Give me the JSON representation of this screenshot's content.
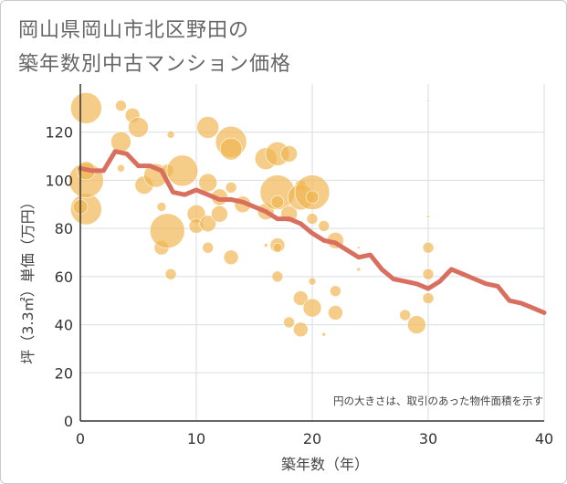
{
  "title_line1": "岡山県岡山市北区野田の",
  "title_line2": "築年数別中古マンション価格",
  "chart_data": {
    "type": "scatter",
    "xlabel": "築年数（年）",
    "ylabel": "坪（3.3㎡）単価（万円）",
    "xlim": [
      0,
      40
    ],
    "ylim": [
      0,
      140
    ],
    "xticks": [
      0,
      10,
      20,
      30,
      40
    ],
    "yticks": [
      0,
      20,
      40,
      60,
      80,
      100,
      120
    ],
    "grid": true,
    "note": "円の大きさは、取引のあった物件面積を示す",
    "colors": {
      "bubble": "#f0b550",
      "line": "#d9705f",
      "grid": "#d6dde6",
      "axis": "#333333"
    },
    "trend_line": {
      "x": [
        0,
        1,
        2,
        3,
        4,
        5,
        6,
        7,
        8,
        9,
        10,
        11,
        12,
        13,
        14,
        15,
        16,
        17,
        18,
        19,
        20,
        21,
        22,
        23,
        24,
        25,
        26,
        27,
        28,
        29,
        30,
        31,
        32,
        33,
        34,
        35,
        36,
        37,
        38,
        39,
        40
      ],
      "y": [
        105,
        104,
        104,
        112,
        111,
        106,
        106,
        104,
        95,
        94,
        96,
        94,
        92,
        92,
        91,
        89,
        87,
        84,
        84,
        82,
        78,
        75,
        74,
        71,
        68,
        69,
        63,
        59,
        58,
        57,
        55,
        58,
        63,
        61,
        59,
        57,
        56,
        50,
        49,
        47,
        45
      ],
      "note": "y values approximate moving average"
    },
    "bubbles": [
      {
        "x": 0.5,
        "y": 130,
        "s": 17
      },
      {
        "x": 0.5,
        "y": 88,
        "s": 17
      },
      {
        "x": 0.5,
        "y": 100,
        "s": 19
      },
      {
        "x": 0.5,
        "y": 104,
        "s": 10
      },
      {
        "x": 0,
        "y": 89,
        "s": 8
      },
      {
        "x": 3.5,
        "y": 131,
        "s": 6
      },
      {
        "x": 4.5,
        "y": 127,
        "s": 8
      },
      {
        "x": 5,
        "y": 122,
        "s": 11
      },
      {
        "x": 3.5,
        "y": 116,
        "s": 11
      },
      {
        "x": 3.5,
        "y": 105,
        "s": 4
      },
      {
        "x": 5.5,
        "y": 98,
        "s": 10
      },
      {
        "x": 6.5,
        "y": 102,
        "s": 13
      },
      {
        "x": 7,
        "y": 89,
        "s": 5
      },
      {
        "x": 7,
        "y": 72,
        "s": 8
      },
      {
        "x": 7.5,
        "y": 79,
        "s": 19
      },
      {
        "x": 7.5,
        "y": 104,
        "s": 7
      },
      {
        "x": 7.8,
        "y": 119,
        "s": 4
      },
      {
        "x": 7.8,
        "y": 61,
        "s": 6
      },
      {
        "x": 8.8,
        "y": 104,
        "s": 17
      },
      {
        "x": 10,
        "y": 86,
        "s": 10
      },
      {
        "x": 10,
        "y": 81,
        "s": 8
      },
      {
        "x": 11,
        "y": 122,
        "s": 12
      },
      {
        "x": 11,
        "y": 99,
        "s": 10
      },
      {
        "x": 11,
        "y": 82,
        "s": 9
      },
      {
        "x": 11,
        "y": 72,
        "s": 6
      },
      {
        "x": 12,
        "y": 93,
        "s": 9
      },
      {
        "x": 12,
        "y": 86,
        "s": 9
      },
      {
        "x": 13,
        "y": 116,
        "s": 17
      },
      {
        "x": 13,
        "y": 113,
        "s": 12
      },
      {
        "x": 13,
        "y": 97,
        "s": 6
      },
      {
        "x": 13,
        "y": 68,
        "s": 8
      },
      {
        "x": 14,
        "y": 90,
        "s": 9
      },
      {
        "x": 16,
        "y": 109,
        "s": 12
      },
      {
        "x": 16,
        "y": 87,
        "s": 9
      },
      {
        "x": 16,
        "y": 73,
        "s": 2
      },
      {
        "x": 17,
        "y": 111,
        "s": 13
      },
      {
        "x": 17,
        "y": 95,
        "s": 19
      },
      {
        "x": 17,
        "y": 91,
        "s": 7
      },
      {
        "x": 17,
        "y": 73,
        "s": 8
      },
      {
        "x": 17,
        "y": 72,
        "s": 5
      },
      {
        "x": 17,
        "y": 60,
        "s": 6
      },
      {
        "x": 18,
        "y": 111,
        "s": 9
      },
      {
        "x": 18,
        "y": 86,
        "s": 9
      },
      {
        "x": 18,
        "y": 41,
        "s": 6
      },
      {
        "x": 19,
        "y": 98,
        "s": 6
      },
      {
        "x": 19,
        "y": 93,
        "s": 14
      },
      {
        "x": 19,
        "y": 51,
        "s": 8
      },
      {
        "x": 19,
        "y": 38,
        "s": 8
      },
      {
        "x": 20,
        "y": 95,
        "s": 19
      },
      {
        "x": 20,
        "y": 93,
        "s": 7
      },
      {
        "x": 20,
        "y": 84,
        "s": 6
      },
      {
        "x": 20,
        "y": 58,
        "s": 4
      },
      {
        "x": 20,
        "y": 47,
        "s": 10
      },
      {
        "x": 21,
        "y": 81,
        "s": 6
      },
      {
        "x": 21,
        "y": 36,
        "s": 2
      },
      {
        "x": 22,
        "y": 75,
        "s": 9
      },
      {
        "x": 22,
        "y": 54,
        "s": 6
      },
      {
        "x": 22,
        "y": 45,
        "s": 8
      },
      {
        "x": 24,
        "y": 72,
        "s": 1.5
      },
      {
        "x": 24,
        "y": 63,
        "s": 2
      },
      {
        "x": 28,
        "y": 44,
        "s": 6
      },
      {
        "x": 29,
        "y": 40,
        "s": 10
      },
      {
        "x": 30,
        "y": 133,
        "s": 1.2
      },
      {
        "x": 30,
        "y": 85,
        "s": 1.5
      },
      {
        "x": 30,
        "y": 72,
        "s": 6
      },
      {
        "x": 30,
        "y": 61,
        "s": 6
      },
      {
        "x": 30,
        "y": 51,
        "s": 6
      }
    ]
  }
}
